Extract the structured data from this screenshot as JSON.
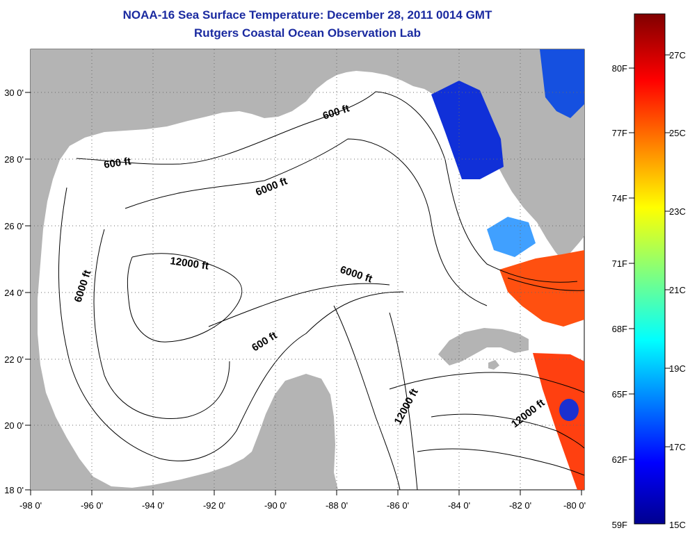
{
  "header": {
    "title": "NOAA-16 Sea Surface Temperature:  December 28, 2011 0014 GMT",
    "subtitle": "Rutgers Coastal Ocean Observation Lab"
  },
  "map": {
    "lon_range": [
      -98,
      -80
    ],
    "lat_range": [
      18,
      31
    ],
    "lon_ticks": [
      "-98 0'",
      "-96 0'",
      "-94 0'",
      "-92 0'",
      "-90 0'",
      "-88 0'",
      "-86 0'",
      "-84 0'",
      "-82 0'",
      "-80 0'"
    ],
    "lat_ticks": [
      "18 0'",
      "20 0'",
      "22 0'",
      "24 0'",
      "26 0'",
      "28 0'",
      "30 0'"
    ],
    "contour_labels": [
      "600 ft",
      "600 ft",
      "6000 ft",
      "6000 ft",
      "6000 ft",
      "12000 ft",
      "600 ft",
      "12000 ft",
      "12000 ft"
    ],
    "land_color": "#b4b4b4",
    "water_color": "#ffffff"
  },
  "colorbar": {
    "fahrenheit_labels": [
      "80F",
      "77F",
      "74F",
      "71F",
      "68F",
      "65F",
      "62F",
      "59F"
    ],
    "celsius_labels": [
      "27C",
      "25C",
      "23C",
      "21C",
      "19C",
      "17C",
      "15C"
    ]
  }
}
